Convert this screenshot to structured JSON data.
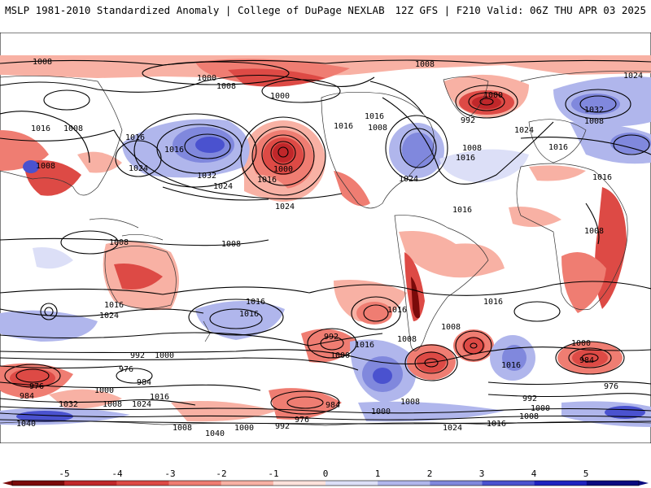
{
  "header": {
    "title": "MSLP 1981-2010 Standardized Anomaly | College of DuPage NEXLAB",
    "run_info": "12Z GFS | F210 Valid: 06Z THU APR 03 2025"
  },
  "colorbar": {
    "ticks": [
      "-5",
      "-4",
      "-3",
      "-2",
      "-1",
      "0",
      "1",
      "2",
      "3",
      "4",
      "5"
    ],
    "colors": [
      "#7a0a0a",
      "#c0272a",
      "#dd4a45",
      "#ef7d72",
      "#f8b1a4",
      "#fde2db",
      "#dcdff7",
      "#b0b6ec",
      "#8088dd",
      "#4a52cf",
      "#1e22c0",
      "#0a0a80"
    ]
  },
  "map": {
    "isobar_labels": [
      "1008",
      "1000",
      "1008",
      "1000",
      "1008",
      "1000",
      "1024",
      "1016",
      "1008",
      "1016",
      "1016",
      "1008",
      "992",
      "1024",
      "1032",
      "1008",
      "1016",
      "1016",
      "1024",
      "1032",
      "1000",
      "1016",
      "1024",
      "1016",
      "1008",
      "1016",
      "1024",
      "1016",
      "1008",
      "1008",
      "1008",
      "1008",
      "1016",
      "1024",
      "1016",
      "1024",
      "1016",
      "1016",
      "1016",
      "1008",
      "992",
      "1000",
      "1016",
      "1008",
      "1016",
      "1016",
      "1000",
      "984",
      "976",
      "984",
      "992",
      "1000",
      "976",
      "984",
      "1000",
      "1008",
      "1024",
      "1016",
      "1032",
      "1040",
      "1008",
      "1000",
      "992",
      "976",
      "984",
      "1000",
      "1008",
      "1040",
      "1024",
      "1016",
      "992",
      "1000",
      "1008",
      "976"
    ]
  }
}
